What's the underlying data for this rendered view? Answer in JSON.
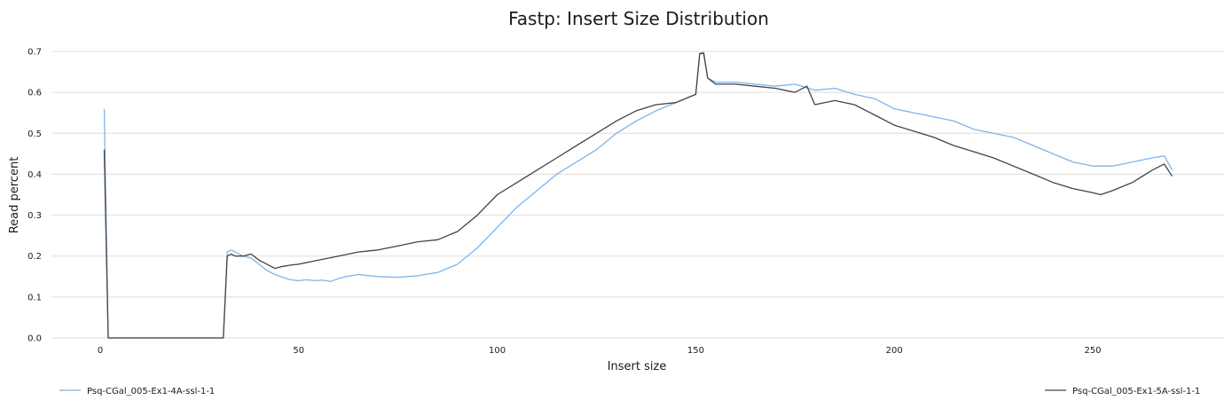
{
  "chart_data": {
    "type": "line",
    "title": "Fastp: Insert Size Distribution",
    "xlabel": "Insert size",
    "ylabel": "Read percent",
    "xlim": [
      -12,
      282
    ],
    "ylim": [
      0,
      0.72
    ],
    "xticks": [
      0,
      50,
      100,
      150,
      200,
      250
    ],
    "yticks": [
      0.0,
      0.1,
      0.2,
      0.3,
      0.4,
      0.5,
      0.6,
      0.7
    ],
    "xtick_labels": [
      "0",
      "50",
      "100",
      "150",
      "200",
      "250"
    ],
    "ytick_labels": [
      "0.0",
      "0.1",
      "0.2",
      "0.3",
      "0.4",
      "0.5",
      "0.6",
      "0.7"
    ],
    "grid": true,
    "legend_position": "bottom",
    "series": [
      {
        "name": "Psq-CGal_005-Ex1-4A-ssl-1-1",
        "color": "#7cb5ec",
        "x": [
          1,
          2,
          31,
          32,
          33,
          34,
          36,
          38,
          40,
          42,
          44,
          46,
          48,
          50,
          52,
          54,
          56,
          58,
          60,
          62,
          65,
          70,
          75,
          80,
          85,
          90,
          95,
          100,
          105,
          110,
          115,
          120,
          125,
          130,
          135,
          140,
          145,
          150,
          151,
          152,
          153,
          155,
          160,
          165,
          170,
          175,
          180,
          185,
          190,
          195,
          200,
          205,
          210,
          215,
          220,
          225,
          230,
          235,
          240,
          245,
          250,
          255,
          260,
          265,
          268,
          270
        ],
        "y": [
          0.56,
          0.0,
          0.0,
          0.21,
          0.215,
          0.21,
          0.2,
          0.195,
          0.18,
          0.165,
          0.155,
          0.148,
          0.142,
          0.14,
          0.142,
          0.14,
          0.141,
          0.138,
          0.145,
          0.15,
          0.155,
          0.15,
          0.148,
          0.152,
          0.16,
          0.18,
          0.22,
          0.27,
          0.32,
          0.36,
          0.4,
          0.43,
          0.46,
          0.5,
          0.53,
          0.555,
          0.575,
          0.595,
          0.695,
          0.698,
          0.635,
          0.625,
          0.625,
          0.62,
          0.615,
          0.62,
          0.605,
          0.61,
          0.595,
          0.585,
          0.56,
          0.55,
          0.54,
          0.53,
          0.51,
          0.5,
          0.49,
          0.47,
          0.45,
          0.43,
          0.42,
          0.42,
          0.43,
          0.44,
          0.445,
          0.41
        ]
      },
      {
        "name": "Psq-CGal_005-Ex1-5A-ssl-1-1",
        "color": "#434348",
        "x": [
          1,
          2,
          31,
          32,
          33,
          34,
          36,
          38,
          40,
          42,
          44,
          46,
          48,
          50,
          55,
          60,
          65,
          70,
          75,
          80,
          85,
          90,
          95,
          100,
          105,
          110,
          115,
          120,
          125,
          130,
          135,
          140,
          145,
          150,
          151,
          152,
          153,
          155,
          160,
          165,
          170,
          175,
          178,
          180,
          185,
          190,
          195,
          200,
          205,
          210,
          215,
          220,
          225,
          230,
          235,
          240,
          245,
          250,
          252,
          255,
          260,
          265,
          268,
          270
        ],
        "y": [
          0.46,
          0.0,
          0.0,
          0.2,
          0.205,
          0.2,
          0.2,
          0.205,
          0.19,
          0.18,
          0.17,
          0.175,
          0.178,
          0.18,
          0.19,
          0.2,
          0.21,
          0.215,
          0.225,
          0.235,
          0.24,
          0.26,
          0.3,
          0.35,
          0.38,
          0.41,
          0.44,
          0.47,
          0.5,
          0.53,
          0.555,
          0.57,
          0.575,
          0.595,
          0.695,
          0.695,
          0.635,
          0.62,
          0.62,
          0.615,
          0.61,
          0.6,
          0.615,
          0.57,
          0.58,
          0.57,
          0.545,
          0.52,
          0.505,
          0.49,
          0.47,
          0.455,
          0.44,
          0.42,
          0.4,
          0.38,
          0.365,
          0.355,
          0.35,
          0.36,
          0.38,
          0.41,
          0.425,
          0.395
        ]
      }
    ]
  }
}
